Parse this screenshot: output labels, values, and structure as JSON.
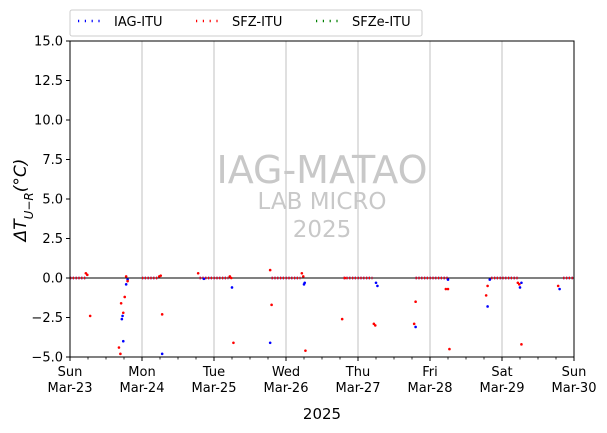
{
  "chart_data": {
    "type": "scatter",
    "xlabel": "2025",
    "ylabel_main": "ΔT",
    "ylabel_sub": "U−R",
    "ylabel_unit": "(°C)",
    "ylim": [
      -5.0,
      15.0
    ],
    "yticks": [
      -5.0,
      -2.5,
      0.0,
      2.5,
      5.0,
      7.5,
      10.0,
      12.5,
      15.0
    ],
    "ytick_labels": [
      "−5.0",
      "−2.5",
      "0.0",
      "2.5",
      "5.0",
      "7.5",
      "10.0",
      "12.5",
      "15.0"
    ],
    "xlim": [
      0,
      7
    ],
    "xticks": [
      {
        "x": 0,
        "day": "Sun",
        "date": "Mar-23"
      },
      {
        "x": 1,
        "day": "Mon",
        "date": "Mar-24"
      },
      {
        "x": 2,
        "day": "Tue",
        "date": "Mar-25"
      },
      {
        "x": 3,
        "day": "Wed",
        "date": "Mar-26"
      },
      {
        "x": 4,
        "day": "Thu",
        "date": "Mar-27"
      },
      {
        "x": 5,
        "day": "Fri",
        "date": "Mar-28"
      },
      {
        "x": 6,
        "day": "Sat",
        "date": "Mar-29"
      },
      {
        "x": 7,
        "day": "Sun",
        "date": "Mar-30"
      }
    ],
    "grid": "vertical-major",
    "reference_line_y": 0,
    "legend_placement": "top",
    "watermark": [
      "IAG-MATAO",
      "LAB MICRO",
      "2025"
    ],
    "series": [
      {
        "name": "IAG-ITU",
        "color": "#0000ff",
        "points": [
          [
            0.72,
            -2.6
          ],
          [
            0.73,
            -2.4
          ],
          [
            0.74,
            -4.0
          ],
          [
            0.78,
            -0.4
          ],
          [
            0.8,
            -0.1
          ],
          [
            1.28,
            -4.8
          ],
          [
            1.86,
            -0.05
          ],
          [
            2.25,
            -0.6
          ],
          [
            2.78,
            -4.1
          ],
          [
            3.25,
            -0.4
          ],
          [
            3.26,
            -0.3
          ],
          [
            4.25,
            -0.3
          ],
          [
            4.27,
            -0.5
          ],
          [
            4.8,
            -3.1
          ],
          [
            5.25,
            -0.1
          ],
          [
            5.8,
            -1.8
          ],
          [
            5.83,
            -0.1
          ],
          [
            6.25,
            -0.6
          ],
          [
            6.27,
            -0.3
          ],
          [
            6.8,
            -0.7
          ]
        ],
        "line_segments": [
          [
            0.0,
            0.22
          ],
          [
            1.0,
            1.22
          ],
          [
            1.8,
            2.2
          ],
          [
            2.8,
            3.2
          ],
          [
            3.8,
            4.2
          ],
          [
            4.8,
            5.25
          ],
          [
            5.85,
            6.22
          ],
          [
            6.85,
            7.0
          ]
        ]
      },
      {
        "name": "SFZ-ITU",
        "color": "#ff0000",
        "points": [
          [
            0.22,
            0.3
          ],
          [
            0.24,
            0.2
          ],
          [
            0.28,
            -2.4
          ],
          [
            0.68,
            -4.4
          ],
          [
            0.7,
            -4.8
          ],
          [
            0.71,
            -1.6
          ],
          [
            0.74,
            -2.2
          ],
          [
            0.76,
            -1.2
          ],
          [
            0.78,
            0.1
          ],
          [
            0.8,
            -0.2
          ],
          [
            1.24,
            0.1
          ],
          [
            1.26,
            0.15
          ],
          [
            1.28,
            -2.3
          ],
          [
            1.78,
            0.3
          ],
          [
            2.22,
            0.1
          ],
          [
            2.24,
            0.0
          ],
          [
            2.27,
            -4.1
          ],
          [
            2.78,
            0.5
          ],
          [
            2.8,
            -1.7
          ],
          [
            3.22,
            0.3
          ],
          [
            3.24,
            0.1
          ],
          [
            3.27,
            -4.6
          ],
          [
            3.78,
            -2.6
          ],
          [
            3.82,
            0.0
          ],
          [
            4.22,
            -2.9
          ],
          [
            4.24,
            -3.0
          ],
          [
            4.78,
            -2.9
          ],
          [
            4.8,
            -1.5
          ],
          [
            5.22,
            -0.7
          ],
          [
            5.25,
            -0.7
          ],
          [
            5.27,
            -4.5
          ],
          [
            5.78,
            -1.1
          ],
          [
            5.8,
            -0.5
          ],
          [
            6.22,
            -0.3
          ],
          [
            6.24,
            -0.4
          ],
          [
            6.27,
            -4.2
          ],
          [
            6.78,
            -0.5
          ]
        ],
        "line_segments": [
          [
            0.0,
            0.22
          ],
          [
            1.0,
            1.22
          ],
          [
            1.8,
            2.2
          ],
          [
            2.8,
            3.2
          ],
          [
            3.8,
            4.2
          ],
          [
            4.8,
            5.25
          ],
          [
            5.85,
            6.22
          ],
          [
            6.85,
            7.0
          ]
        ]
      },
      {
        "name": "SFZe-ITU",
        "color": "#008000",
        "points": [],
        "line_segments": []
      }
    ]
  }
}
